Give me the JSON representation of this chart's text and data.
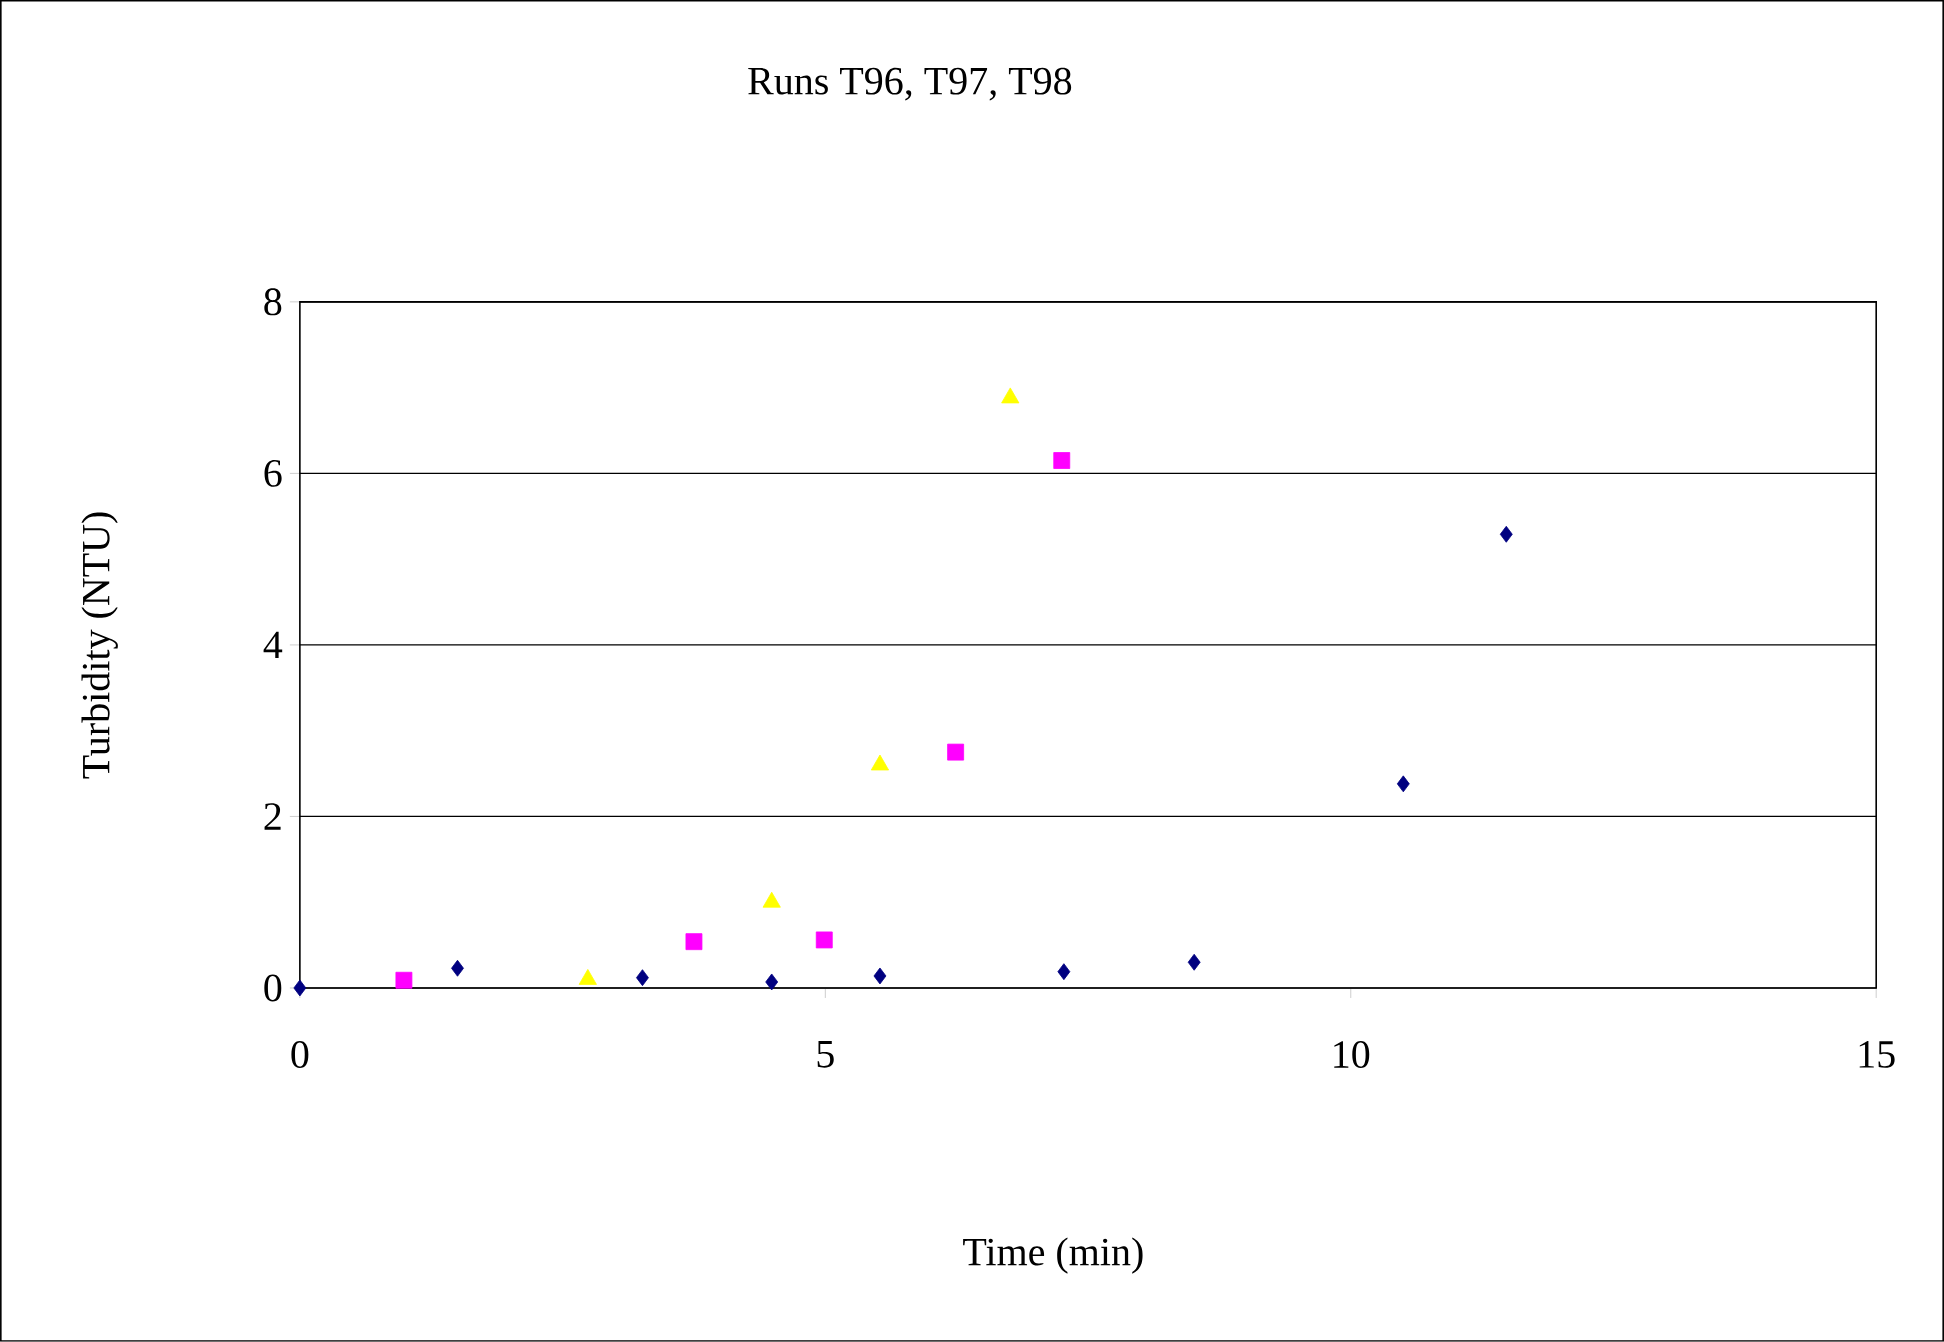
{
  "chart_data": {
    "type": "scatter",
    "title": "Runs T96, T97, T98",
    "xlabel": "Time (min)",
    "ylabel": "Turbidity (NTU)",
    "xlim": [
      0,
      15
    ],
    "ylim": [
      0,
      8
    ],
    "xticks": [
      0,
      5,
      10,
      15
    ],
    "yticks": [
      0,
      2,
      4,
      6,
      8
    ],
    "grid": "y",
    "series": [
      {
        "color": "#000080",
        "marker": "diamond",
        "x": [
          0,
          1.5,
          3.26,
          4.49,
          5.52,
          7.27,
          8.51,
          10.5,
          11.48
        ],
        "values": [
          0,
          0.23,
          0.12,
          0.07,
          0.14,
          0.19,
          0.3,
          2.38,
          5.29
        ]
      },
      {
        "color": "#ff00ff",
        "marker": "square",
        "x": [
          0.99,
          3.75,
          4.99,
          6.24,
          7.25
        ],
        "values": [
          0.09,
          0.54,
          0.56,
          2.75,
          6.15
        ]
      },
      {
        "color": "#ffff00",
        "marker": "triangle",
        "x": [
          2.74,
          4.49,
          5.52,
          6.76
        ],
        "values": [
          0.1,
          1.0,
          2.6,
          6.88
        ]
      }
    ]
  }
}
